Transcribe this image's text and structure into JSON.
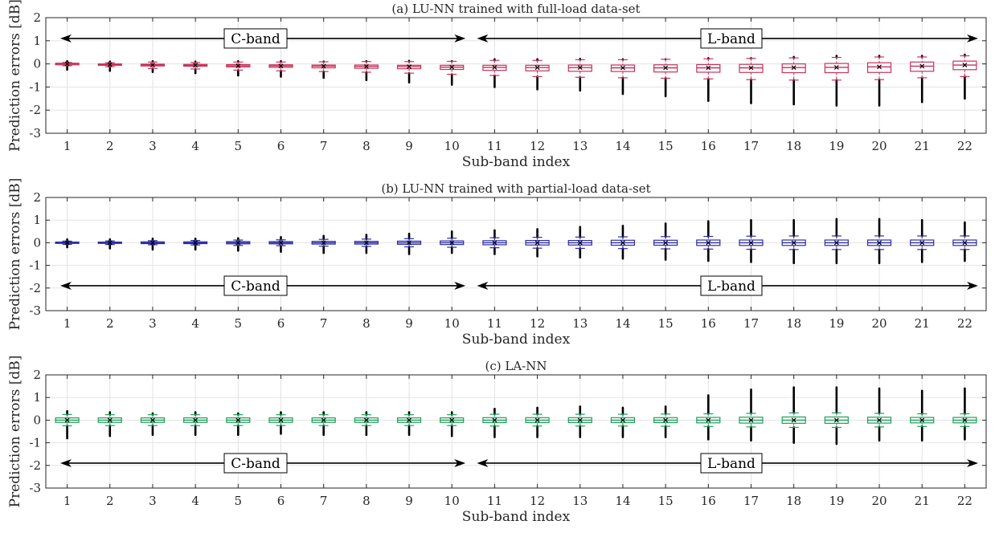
{
  "chart_data": [
    {
      "type": "box",
      "title": "(a) LU-NN trained with full-load data-set",
      "xlabel": "Sub-band index",
      "ylabel": "Prediction errors [dB]",
      "ylim": [
        -3,
        2
      ],
      "yticks": [
        2,
        1,
        0,
        -1,
        -2,
        -3
      ],
      "categories": [
        "1",
        "2",
        "3",
        "4",
        "5",
        "6",
        "7",
        "8",
        "9",
        "10",
        "11",
        "12",
        "13",
        "14",
        "15",
        "16",
        "17",
        "18",
        "19",
        "20",
        "21",
        "22"
      ],
      "grid": true,
      "color": "#c8325a",
      "band_arrows": {
        "c_label": "C-band",
        "l_label": "L-band",
        "y": 1.1
      },
      "boxes": [
        {
          "q1": -0.04,
          "median": 0.0,
          "q3": 0.03,
          "wlo": -0.08,
          "whi": 0.06,
          "omin": -0.25,
          "omax": 0.12
        },
        {
          "q1": -0.06,
          "median": -0.03,
          "q3": 0.0,
          "wlo": -0.12,
          "whi": 0.05,
          "omin": -0.3,
          "omax": 0.1
        },
        {
          "q1": -0.09,
          "median": -0.05,
          "q3": -0.01,
          "wlo": -0.2,
          "whi": 0.08,
          "omin": -0.35,
          "omax": 0.12
        },
        {
          "q1": -0.1,
          "median": -0.06,
          "q3": -0.02,
          "wlo": -0.22,
          "whi": 0.06,
          "omin": -0.4,
          "omax": 0.1
        },
        {
          "q1": -0.13,
          "median": -0.08,
          "q3": -0.03,
          "wlo": -0.27,
          "whi": 0.08,
          "omin": -0.5,
          "omax": 0.12
        },
        {
          "q1": -0.15,
          "median": -0.09,
          "q3": -0.04,
          "wlo": -0.3,
          "whi": 0.08,
          "omin": -0.55,
          "omax": 0.12
        },
        {
          "q1": -0.17,
          "median": -0.1,
          "q3": -0.05,
          "wlo": -0.33,
          "whi": 0.09,
          "omin": -0.6,
          "omax": 0.1
        },
        {
          "q1": -0.19,
          "median": -0.11,
          "q3": -0.05,
          "wlo": -0.36,
          "whi": 0.1,
          "omin": -0.7,
          "omax": 0.12
        },
        {
          "q1": -0.21,
          "median": -0.12,
          "q3": -0.06,
          "wlo": -0.4,
          "whi": 0.1,
          "omin": -0.8,
          "omax": 0.13
        },
        {
          "q1": -0.24,
          "median": -0.14,
          "q3": -0.06,
          "wlo": -0.45,
          "whi": 0.11,
          "omin": -0.9,
          "omax": 0.12
        },
        {
          "q1": -0.28,
          "median": -0.15,
          "q3": -0.06,
          "wlo": -0.5,
          "whi": 0.15,
          "omin": -1.0,
          "omax": 0.2
        },
        {
          "q1": -0.3,
          "median": -0.16,
          "q3": -0.06,
          "wlo": -0.55,
          "whi": 0.15,
          "omin": -1.1,
          "omax": 0.2
        },
        {
          "q1": -0.32,
          "median": -0.16,
          "q3": -0.05,
          "wlo": -0.58,
          "whi": 0.18,
          "omin": -1.15,
          "omax": 0.22
        },
        {
          "q1": -0.33,
          "median": -0.17,
          "q3": -0.05,
          "wlo": -0.6,
          "whi": 0.18,
          "omin": -1.3,
          "omax": 0.2
        },
        {
          "q1": -0.35,
          "median": -0.17,
          "q3": -0.04,
          "wlo": -0.62,
          "whi": 0.2,
          "omin": -1.4,
          "omax": 0.2
        },
        {
          "q1": -0.36,
          "median": -0.17,
          "q3": -0.03,
          "wlo": -0.65,
          "whi": 0.22,
          "omin": -1.6,
          "omax": 0.25
        },
        {
          "q1": -0.37,
          "median": -0.17,
          "q3": -0.02,
          "wlo": -0.68,
          "whi": 0.24,
          "omin": -1.7,
          "omax": 0.25
        },
        {
          "q1": -0.38,
          "median": -0.16,
          "q3": 0.0,
          "wlo": -0.7,
          "whi": 0.26,
          "omin": -1.75,
          "omax": 0.3
        },
        {
          "q1": -0.38,
          "median": -0.15,
          "q3": 0.02,
          "wlo": -0.7,
          "whi": 0.28,
          "omin": -1.8,
          "omax": 0.35
        },
        {
          "q1": -0.37,
          "median": -0.13,
          "q3": 0.05,
          "wlo": -0.68,
          "whi": 0.3,
          "omin": -1.8,
          "omax": 0.35
        },
        {
          "q1": -0.32,
          "median": -0.1,
          "q3": 0.08,
          "wlo": -0.6,
          "whi": 0.3,
          "omin": -1.65,
          "omax": 0.35
        },
        {
          "q1": -0.25,
          "median": -0.05,
          "q3": 0.12,
          "wlo": -0.55,
          "whi": 0.35,
          "omin": -1.5,
          "omax": 0.4
        }
      ]
    },
    {
      "type": "box",
      "title": "(b) LU-NN trained with partial-load data-set",
      "xlabel": "Sub-band index",
      "ylabel": "Prediction errors [dB]",
      "ylim": [
        -3,
        2
      ],
      "yticks": [
        2,
        1,
        0,
        -1,
        -2,
        -3
      ],
      "categories": [
        "1",
        "2",
        "3",
        "4",
        "5",
        "6",
        "7",
        "8",
        "9",
        "10",
        "11",
        "12",
        "13",
        "14",
        "15",
        "16",
        "17",
        "18",
        "19",
        "20",
        "21",
        "22"
      ],
      "grid": true,
      "color": "#2d2da6",
      "band_arrows": {
        "c_label": "C-band",
        "l_label": "L-band",
        "y": -1.9
      },
      "boxes": [
        {
          "q1": -0.03,
          "median": 0.0,
          "q3": 0.03,
          "wlo": -0.07,
          "whi": 0.07,
          "omin": -0.2,
          "omax": 0.15
        },
        {
          "q1": -0.03,
          "median": 0.0,
          "q3": 0.03,
          "wlo": -0.08,
          "whi": 0.08,
          "omin": -0.25,
          "omax": 0.15
        },
        {
          "q1": -0.04,
          "median": 0.0,
          "q3": 0.04,
          "wlo": -0.09,
          "whi": 0.09,
          "omin": -0.3,
          "omax": 0.18
        },
        {
          "q1": -0.04,
          "median": 0.0,
          "q3": 0.04,
          "wlo": -0.1,
          "whi": 0.1,
          "omin": -0.3,
          "omax": 0.18
        },
        {
          "q1": -0.05,
          "median": 0.0,
          "q3": 0.05,
          "wlo": -0.12,
          "whi": 0.12,
          "omin": -0.35,
          "omax": 0.2
        },
        {
          "q1": -0.05,
          "median": 0.0,
          "q3": 0.05,
          "wlo": -0.13,
          "whi": 0.13,
          "omin": -0.4,
          "omax": 0.25
        },
        {
          "q1": -0.06,
          "median": 0.0,
          "q3": 0.06,
          "wlo": -0.15,
          "whi": 0.15,
          "omin": -0.45,
          "omax": 0.3
        },
        {
          "q1": -0.06,
          "median": 0.0,
          "q3": 0.06,
          "wlo": -0.16,
          "whi": 0.16,
          "omin": -0.45,
          "omax": 0.35
        },
        {
          "q1": -0.07,
          "median": 0.0,
          "q3": 0.07,
          "wlo": -0.18,
          "whi": 0.18,
          "omin": -0.5,
          "omax": 0.4
        },
        {
          "q1": -0.08,
          "median": 0.0,
          "q3": 0.08,
          "wlo": -0.2,
          "whi": 0.2,
          "omin": -0.45,
          "omax": 0.5
        },
        {
          "q1": -0.09,
          "median": 0.0,
          "q3": 0.09,
          "wlo": -0.22,
          "whi": 0.22,
          "omin": -0.5,
          "omax": 0.55
        },
        {
          "q1": -0.1,
          "median": 0.0,
          "q3": 0.1,
          "wlo": -0.24,
          "whi": 0.24,
          "omin": -0.6,
          "omax": 0.6
        },
        {
          "q1": -0.1,
          "median": 0.0,
          "q3": 0.1,
          "wlo": -0.25,
          "whi": 0.25,
          "omin": -0.65,
          "omax": 0.7
        },
        {
          "q1": -0.11,
          "median": 0.0,
          "q3": 0.11,
          "wlo": -0.26,
          "whi": 0.26,
          "omin": -0.7,
          "omax": 0.75
        },
        {
          "q1": -0.11,
          "median": 0.0,
          "q3": 0.11,
          "wlo": -0.27,
          "whi": 0.27,
          "omin": -0.75,
          "omax": 0.85
        },
        {
          "q1": -0.12,
          "median": 0.0,
          "q3": 0.12,
          "wlo": -0.28,
          "whi": 0.28,
          "omin": -0.8,
          "omax": 0.95
        },
        {
          "q1": -0.12,
          "median": 0.0,
          "q3": 0.12,
          "wlo": -0.29,
          "whi": 0.29,
          "omin": -0.85,
          "omax": 1.0
        },
        {
          "q1": -0.12,
          "median": 0.0,
          "q3": 0.12,
          "wlo": -0.3,
          "whi": 0.3,
          "omin": -0.9,
          "omax": 1.0
        },
        {
          "q1": -0.12,
          "median": 0.0,
          "q3": 0.12,
          "wlo": -0.3,
          "whi": 0.3,
          "omin": -0.9,
          "omax": 1.05
        },
        {
          "q1": -0.12,
          "median": 0.0,
          "q3": 0.12,
          "wlo": -0.3,
          "whi": 0.3,
          "omin": -0.9,
          "omax": 1.05
        },
        {
          "q1": -0.12,
          "median": 0.0,
          "q3": 0.12,
          "wlo": -0.3,
          "whi": 0.3,
          "omin": -0.85,
          "omax": 1.0
        },
        {
          "q1": -0.12,
          "median": 0.0,
          "q3": 0.12,
          "wlo": -0.3,
          "whi": 0.3,
          "omin": -0.8,
          "omax": 0.9
        }
      ]
    },
    {
      "type": "box",
      "title": "(c) LA-NN",
      "xlabel": "Sub-band index",
      "ylabel": "Prediction errors [dB]",
      "ylim": [
        -3,
        2
      ],
      "yticks": [
        2,
        1,
        0,
        -1,
        -2,
        -3
      ],
      "categories": [
        "1",
        "2",
        "3",
        "4",
        "5",
        "6",
        "7",
        "8",
        "9",
        "10",
        "11",
        "12",
        "13",
        "14",
        "15",
        "16",
        "17",
        "18",
        "19",
        "20",
        "21",
        "22"
      ],
      "grid": true,
      "color": "#1f9e5a",
      "band_arrows": {
        "c_label": "C-band",
        "l_label": "L-band",
        "y": -1.9
      },
      "boxes": [
        {
          "q1": -0.1,
          "median": 0.0,
          "q3": 0.1,
          "wlo": -0.25,
          "whi": 0.25,
          "omin": -0.8,
          "omax": 0.4
        },
        {
          "q1": -0.1,
          "median": 0.0,
          "q3": 0.1,
          "wlo": -0.24,
          "whi": 0.24,
          "omin": -0.7,
          "omax": 0.35
        },
        {
          "q1": -0.1,
          "median": 0.0,
          "q3": 0.1,
          "wlo": -0.24,
          "whi": 0.24,
          "omin": -0.65,
          "omax": 0.3
        },
        {
          "q1": -0.1,
          "median": 0.0,
          "q3": 0.1,
          "wlo": -0.24,
          "whi": 0.24,
          "omin": -0.65,
          "omax": 0.35
        },
        {
          "q1": -0.1,
          "median": 0.0,
          "q3": 0.1,
          "wlo": -0.24,
          "whi": 0.24,
          "omin": -0.65,
          "omax": 0.3
        },
        {
          "q1": -0.1,
          "median": 0.0,
          "q3": 0.1,
          "wlo": -0.24,
          "whi": 0.24,
          "omin": -0.6,
          "omax": 0.35
        },
        {
          "q1": -0.1,
          "median": 0.0,
          "q3": 0.1,
          "wlo": -0.24,
          "whi": 0.24,
          "omin": -0.65,
          "omax": 0.35
        },
        {
          "q1": -0.1,
          "median": 0.0,
          "q3": 0.1,
          "wlo": -0.24,
          "whi": 0.24,
          "omin": -0.65,
          "omax": 0.35
        },
        {
          "q1": -0.1,
          "median": 0.0,
          "q3": 0.1,
          "wlo": -0.24,
          "whi": 0.24,
          "omin": -0.65,
          "omax": 0.35
        },
        {
          "q1": -0.1,
          "median": 0.0,
          "q3": 0.1,
          "wlo": -0.24,
          "whi": 0.24,
          "omin": -0.7,
          "omax": 0.35
        },
        {
          "q1": -0.11,
          "median": 0.0,
          "q3": 0.11,
          "wlo": -0.26,
          "whi": 0.26,
          "omin": -0.75,
          "omax": 0.5
        },
        {
          "q1": -0.11,
          "median": 0.0,
          "q3": 0.11,
          "wlo": -0.26,
          "whi": 0.26,
          "omin": -0.75,
          "omax": 0.55
        },
        {
          "q1": -0.11,
          "median": 0.0,
          "q3": 0.11,
          "wlo": -0.26,
          "whi": 0.26,
          "omin": -0.75,
          "omax": 0.6
        },
        {
          "q1": -0.11,
          "median": 0.0,
          "q3": 0.11,
          "wlo": -0.26,
          "whi": 0.26,
          "omin": -0.75,
          "omax": 0.55
        },
        {
          "q1": -0.11,
          "median": 0.0,
          "q3": 0.11,
          "wlo": -0.27,
          "whi": 0.27,
          "omin": -0.75,
          "omax": 0.6
        },
        {
          "q1": -0.12,
          "median": 0.0,
          "q3": 0.12,
          "wlo": -0.28,
          "whi": 0.28,
          "omin": -0.85,
          "omax": 1.1
        },
        {
          "q1": -0.13,
          "median": 0.0,
          "q3": 0.13,
          "wlo": -0.3,
          "whi": 0.3,
          "omin": -0.9,
          "omax": 1.35
        },
        {
          "q1": -0.14,
          "median": 0.0,
          "q3": 0.14,
          "wlo": -0.32,
          "whi": 0.32,
          "omin": -1.0,
          "omax": 1.45
        },
        {
          "q1": -0.14,
          "median": 0.0,
          "q3": 0.14,
          "wlo": -0.32,
          "whi": 0.32,
          "omin": -1.05,
          "omax": 1.45
        },
        {
          "q1": -0.13,
          "median": 0.0,
          "q3": 0.13,
          "wlo": -0.3,
          "whi": 0.3,
          "omin": -0.9,
          "omax": 1.4
        },
        {
          "q1": -0.12,
          "median": 0.0,
          "q3": 0.12,
          "wlo": -0.28,
          "whi": 0.28,
          "omin": -0.9,
          "omax": 1.3
        },
        {
          "q1": -0.12,
          "median": 0.0,
          "q3": 0.12,
          "wlo": -0.28,
          "whi": 0.28,
          "omin": -0.85,
          "omax": 1.4
        }
      ]
    }
  ]
}
